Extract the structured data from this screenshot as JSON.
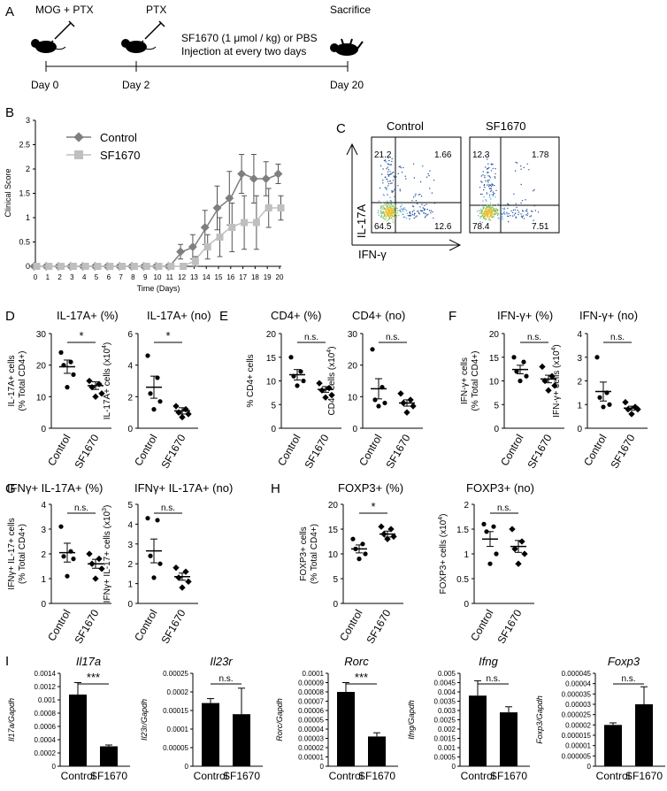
{
  "panel_labels": {
    "A": "A",
    "B": "B",
    "C": "C",
    "D": "D",
    "E": "E",
    "F": "F",
    "G": "G",
    "H": "H",
    "I": "I"
  },
  "timeline": {
    "step1": "MOG + PTX",
    "step2": "PTX",
    "step3": "Sacrifice",
    "treatment_line1": "SF1670 (1 μmol / kg) or PBS",
    "treatment_line2": "Injection at every two days",
    "day0": "Day 0",
    "day2": "Day 2",
    "day20": "Day 20"
  },
  "colors": {
    "control": "#7f7f7f",
    "sf1670": "#bfbfbf",
    "bar": "#000000"
  },
  "flow": {
    "control_title": "Control",
    "sf_title": "SF1670",
    "y_label": "IL-17A",
    "x_label": "IFN-γ",
    "control_q": {
      "ul": "21.2",
      "ur": "1.66",
      "ll": "64.5",
      "lr": "12.6"
    },
    "sf_q": {
      "ul": "12.3",
      "ur": "1.78",
      "ll": "78.4",
      "lr": "7.51"
    }
  },
  "chart_data": [
    {
      "id": "B",
      "type": "line",
      "ylabel": "Clinical Score",
      "xlabel": "Time (Days)",
      "x": [
        0,
        1,
        2,
        3,
        4,
        5,
        6,
        7,
        8,
        9,
        10,
        11,
        12,
        13,
        14,
        15,
        16,
        17,
        18,
        19,
        20
      ],
      "xticks": [
        "0",
        "1",
        "2",
        "3",
        "4",
        "5",
        "6",
        "7",
        "8",
        "9",
        "10",
        "11",
        "12",
        "13",
        "14",
        "15",
        "16",
        "17",
        "18",
        "19",
        "20"
      ],
      "yticks": [
        "0",
        "0.5",
        "1",
        "1.5",
        "2",
        "2.5",
        "3"
      ],
      "ylim": [
        0,
        3
      ],
      "series": [
        {
          "name": "Control",
          "values": [
            0,
            0,
            0,
            0,
            0,
            0,
            0,
            0,
            0,
            0,
            0,
            0,
            0.3,
            0.4,
            0.8,
            1.2,
            1.4,
            1.9,
            1.8,
            1.8,
            1.9
          ],
          "err": [
            0,
            0,
            0,
            0,
            0,
            0,
            0,
            0,
            0,
            0,
            0,
            0,
            0.15,
            0.25,
            0.35,
            0.45,
            0.55,
            0.4,
            0.5,
            0.35,
            0.2
          ]
        },
        {
          "name": "SF1670",
          "values": [
            0,
            0,
            0,
            0,
            0,
            0,
            0,
            0,
            0,
            0,
            0,
            0,
            0,
            0.1,
            0.4,
            0.6,
            0.8,
            0.9,
            0.9,
            1.2,
            1.2
          ],
          "err": [
            0,
            0,
            0,
            0,
            0,
            0,
            0,
            0,
            0,
            0,
            0,
            0,
            0,
            0.1,
            0.25,
            0.4,
            0.5,
            0.55,
            0.55,
            0.4,
            0.25
          ]
        }
      ]
    },
    {
      "id": "D1",
      "type": "scatter",
      "title": "IL-17A+ (%)",
      "ylabel": [
        "IL-17A+ cells",
        "(% Total CD4+)"
      ],
      "yticks": [
        "0",
        "10",
        "20",
        "30"
      ],
      "ylim": [
        0,
        30
      ],
      "categories": [
        "Control",
        "SF1670"
      ],
      "points": [
        [
          24,
          21,
          20,
          17,
          13
        ],
        [
          15,
          14,
          13,
          11,
          10
        ]
      ],
      "mean": [
        19.5,
        13.5
      ],
      "sem": [
        2.1,
        1.2
      ],
      "sig": "*"
    },
    {
      "id": "D2",
      "type": "scatter",
      "title": "IL-17A+ (no)",
      "ylabel": [
        "IL-17A+ cells (x10",
        "4",
        ")"
      ],
      "yticks": [
        "0",
        "2",
        "4",
        "6"
      ],
      "ylim": [
        0,
        6
      ],
      "categories": [
        "Control",
        "SF1670"
      ],
      "points": [
        [
          4.6,
          3.2,
          2.2,
          1.7,
          1.2
        ],
        [
          1.4,
          1.2,
          1.0,
          0.9,
          0.7
        ]
      ],
      "mean": [
        2.6,
        1.1
      ],
      "sem": [
        0.7,
        0.2
      ],
      "sig": "*"
    },
    {
      "id": "E1",
      "type": "scatter",
      "title": "CD4+ (%)",
      "ylabel": [
        "% CD4+ cells"
      ],
      "yticks": [
        "0",
        "5",
        "10",
        "15",
        "20"
      ],
      "ylim": [
        0,
        20
      ],
      "categories": [
        "Control",
        "SF1670"
      ],
      "points": [
        [
          15,
          12,
          11,
          10,
          9
        ],
        [
          9.5,
          8.5,
          8,
          7,
          6.5
        ]
      ],
      "mean": [
        11.3,
        8.2
      ],
      "sem": [
        1.1,
        0.6
      ],
      "sig": "n.s."
    },
    {
      "id": "E2",
      "type": "scatter",
      "title": "CD4+ (no)",
      "ylabel": [
        "CD4+ cells (x10",
        "4",
        ")"
      ],
      "yticks": [
        "0",
        "10",
        "20",
        "30"
      ],
      "ylim": [
        0,
        30
      ],
      "categories": [
        "Control",
        "SF1670"
      ],
      "points": [
        [
          25,
          13,
          9,
          8,
          7
        ],
        [
          11,
          9,
          8,
          7,
          5
        ]
      ],
      "mean": [
        12.5,
        8
      ],
      "sem": [
        3.2,
        1.0
      ],
      "sig": "n.s."
    },
    {
      "id": "F1",
      "type": "scatter",
      "title": "IFN-γ+ (%)",
      "ylabel": [
        "IFN-γ+ cells",
        "(% Total CD4+)"
      ],
      "yticks": [
        "0",
        "5",
        "10",
        "15",
        "20"
      ],
      "ylim": [
        0,
        20
      ],
      "categories": [
        "Control",
        "SF1670"
      ],
      "points": [
        [
          15,
          14,
          12,
          11,
          10
        ],
        [
          13,
          11,
          10,
          9,
          8
        ]
      ],
      "mean": [
        12.4,
        10.4
      ],
      "sem": [
        0.9,
        0.8
      ],
      "sig": "n.s."
    },
    {
      "id": "F2",
      "type": "scatter",
      "title": "IFN-γ+ (no)",
      "ylabel": [
        "IFN-γ+ cells (x10",
        "4",
        ")"
      ],
      "yticks": [
        "0",
        "1",
        "2",
        "3",
        "4"
      ],
      "ylim": [
        0,
        4
      ],
      "categories": [
        "Control",
        "SF1670"
      ],
      "points": [
        [
          3.0,
          1.5,
          1.3,
          1.0,
          0.9
        ],
        [
          1.1,
          0.9,
          0.8,
          0.8,
          0.6
        ]
      ],
      "mean": [
        1.55,
        0.85
      ],
      "sem": [
        0.4,
        0.08
      ],
      "sig": "n.s."
    },
    {
      "id": "G1",
      "type": "scatter",
      "title": "IFNγ+ IL-17A+ (%)",
      "ylabel": [
        "IFNγ+ IL-17+ cells",
        "(% Total CD4+)"
      ],
      "yticks": [
        "0",
        "1",
        "2",
        "3",
        "4"
      ],
      "ylim": [
        0,
        4
      ],
      "categories": [
        "Control",
        "SF1670"
      ],
      "points": [
        [
          3.1,
          2.1,
          1.9,
          1.8,
          1.1
        ],
        [
          2.0,
          1.8,
          1.6,
          1.4,
          1.0
        ]
      ],
      "mean": [
        2.05,
        1.6
      ],
      "sem": [
        0.38,
        0.18
      ],
      "sig": "n.s."
    },
    {
      "id": "G2",
      "type": "scatter",
      "title": "IFNγ+ IL-17A+ (no)",
      "ylabel": [
        "IFNγ+ IL-17+ cells (x10",
        "3",
        ")"
      ],
      "yticks": [
        "0",
        "1",
        "2",
        "3",
        "4",
        "5"
      ],
      "ylim": [
        0,
        5
      ],
      "categories": [
        "Control",
        "SF1670"
      ],
      "points": [
        [
          4.3,
          4.2,
          2.4,
          2.0,
          1.3
        ],
        [
          1.8,
          1.6,
          1.3,
          1.1,
          0.8
        ]
      ],
      "mean": [
        2.65,
        1.35
      ],
      "sem": [
        0.6,
        0.18
      ],
      "sig": "n.s."
    },
    {
      "id": "H1",
      "type": "scatter",
      "title": "FOXP3+ (%)",
      "ylabel": [
        "FOXP3+ cells",
        "(% Total CD4+)"
      ],
      "yticks": [
        "0",
        "5",
        "10",
        "15",
        "20"
      ],
      "ylim": [
        0,
        20
      ],
      "categories": [
        "Control",
        "SF1670"
      ],
      "points": [
        [
          13,
          12,
          11,
          10,
          9
        ],
        [
          15.5,
          15,
          14,
          13.5,
          13
        ]
      ],
      "mean": [
        11,
        14
      ],
      "sem": [
        0.8,
        0.6
      ],
      "sig": "*"
    },
    {
      "id": "H2",
      "type": "scatter",
      "title": "FOXP3+ (no)",
      "ylabel": [
        "FOXP3+ cells (x10",
        "4",
        ")"
      ],
      "yticks": [
        "0",
        "0.5",
        "1",
        "1.5",
        "2"
      ],
      "ylim": [
        0,
        2
      ],
      "categories": [
        "Control",
        "SF1670"
      ],
      "points": [
        [
          1.6,
          1.55,
          1.45,
          1.0,
          0.8
        ],
        [
          1.5,
          1.25,
          1.1,
          1.0,
          0.8
        ]
      ],
      "mean": [
        1.3,
        1.15
      ],
      "sem": [
        0.15,
        0.12
      ],
      "sig": "n.s."
    },
    {
      "id": "I1",
      "type": "bar",
      "title": "Il17a",
      "ylabel": "Il17a/Gapdh",
      "yticks": [
        "0",
        "0.0002",
        "0.0004",
        "0.0006",
        "0.0008",
        "0.001",
        "0.0012",
        "0.0014"
      ],
      "ylim": [
        0,
        0.0014
      ],
      "categories": [
        "Control",
        "SF1670"
      ],
      "values": [
        0.00108,
        0.0003
      ],
      "err": [
        0.00018,
        2e-05
      ],
      "sig": "***"
    },
    {
      "id": "I2",
      "type": "bar",
      "title": "Il23r",
      "ylabel": "Il23r/Gapdh",
      "yticks": [
        "0",
        "0.00005",
        "0.0001",
        "0.00015",
        "0.0002",
        "0.00025"
      ],
      "ylim": [
        0,
        0.00025
      ],
      "categories": [
        "Control",
        "SF1670"
      ],
      "values": [
        0.00017,
        0.00014
      ],
      "err": [
        1.2e-05,
        7e-05
      ],
      "sig": "n.s."
    },
    {
      "id": "I3",
      "type": "bar",
      "title": "Rorc",
      "ylabel": "Rorc/Gapdh",
      "yticks": [
        "0",
        "0.00001",
        "0.00002",
        "0.00003",
        "0.00004",
        "0.00005",
        "0.00006",
        "0.00007",
        "0.00008",
        "0.00009",
        "0.0001"
      ],
      "ylim": [
        0,
        0.0001
      ],
      "categories": [
        "Control",
        "SF1670"
      ],
      "values": [
        8e-05,
        3.2e-05
      ],
      "err": [
        1e-05,
        4e-06
      ],
      "sig": "***"
    },
    {
      "id": "I4",
      "type": "bar",
      "title": "Ifng",
      "ylabel": "Ifng/Gapdh",
      "yticks": [
        "0",
        "0.0005",
        "0.001",
        "0.0015",
        "0.002",
        "0.0025",
        "0.003",
        "0.0035",
        "0.004",
        "0.0045",
        "0.005"
      ],
      "ylim": [
        0,
        0.005
      ],
      "categories": [
        "Control",
        "SF1670"
      ],
      "values": [
        0.0038,
        0.0029
      ],
      "err": [
        0.0008,
        0.0003
      ],
      "sig": "n.s."
    },
    {
      "id": "I5",
      "type": "bar",
      "title": "Foxp3",
      "ylabel": "Foxp3/Gapdh",
      "yticks": [
        "0",
        "0.000005",
        "0.00001",
        "0.000015",
        "0.00002",
        "0.000025",
        "0.00003",
        "0.000035",
        "0.00004",
        "0.000045"
      ],
      "ylim": [
        0,
        4.5e-05
      ],
      "categories": [
        "Control",
        "SF1670"
      ],
      "values": [
        2e-05,
        3e-05
      ],
      "err": [
        1e-06,
        8.5e-06
      ],
      "sig": "n.s."
    }
  ]
}
